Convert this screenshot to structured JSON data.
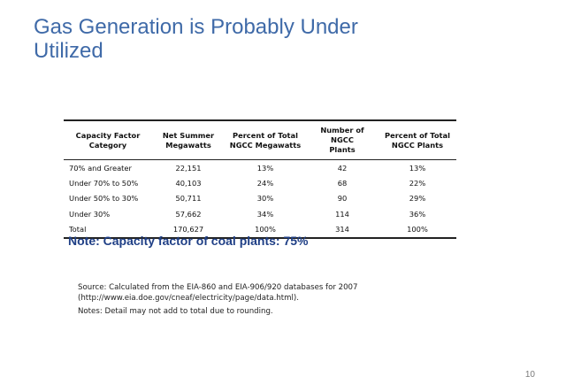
{
  "slide": {
    "title_line1": "Gas Generation is Probably Under",
    "title_line2": "Utilized",
    "page_number": "10"
  },
  "table": {
    "headers": [
      [
        "Capacity Factor",
        "Category"
      ],
      [
        "Net Summer",
        "Megawatts"
      ],
      [
        "Percent of Total",
        "NGCC Megawatts"
      ],
      [
        "Number of NGCC",
        "Plants"
      ],
      [
        "Percent of Total",
        "NGCC Plants"
      ]
    ],
    "rows": [
      [
        "70% and Greater",
        "22,151",
        "13%",
        "42",
        "13%"
      ],
      [
        "Under 70% to 50%",
        "40,103",
        "24%",
        "68",
        "22%"
      ],
      [
        "Under 50% to 30%",
        "50,711",
        "30%",
        "90",
        "29%"
      ],
      [
        "Under 30%",
        "57,662",
        "34%",
        "114",
        "36%"
      ],
      [
        "Total",
        "170,627",
        "100%",
        "314",
        "100%"
      ]
    ]
  },
  "note": "Note: Capacity factor of coal plants: 75%",
  "source": {
    "line1": "Source: Calculated from the EIA-860 and EIA-906/920 databases for 2007",
    "line2": "(http://www.eia.doe.gov/cneaf/electricity/page/data.html).",
    "notes": "Notes: Detail may not add to total due to rounding."
  },
  "colors": {
    "title": "#3f6aa8",
    "note": "#1f3f86"
  }
}
